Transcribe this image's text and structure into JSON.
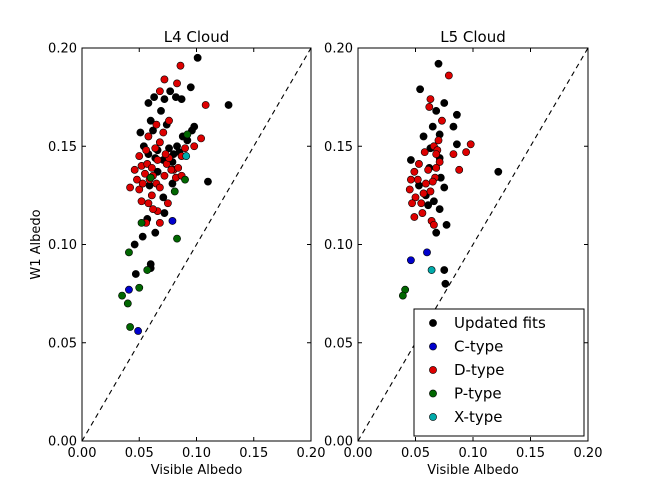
{
  "chart_data": [
    {
      "type": "scatter",
      "title": "L4 Cloud",
      "xlabel": "Visible Albedo",
      "ylabel": "W1 Albedo",
      "xlim": [
        0,
        0.2
      ],
      "ylim": [
        0,
        0.2
      ],
      "xticks": [
        "0.00",
        "0.05",
        "0.10",
        "0.15",
        "0.20"
      ],
      "yticks": [
        "0.00",
        "0.05",
        "0.10",
        "0.15",
        "0.20"
      ],
      "reference_line": "y = x (dashed)",
      "series": [
        {
          "name": "Updated fits",
          "color": "#000000",
          "points": [
            [
              0.058,
              0.172
            ],
            [
              0.063,
              0.175
            ],
            [
              0.072,
              0.174
            ],
            [
              0.069,
              0.168
            ],
            [
              0.077,
              0.178
            ],
            [
              0.074,
              0.161
            ],
            [
              0.06,
              0.163
            ],
            [
              0.062,
              0.158
            ],
            [
              0.051,
              0.157
            ],
            [
              0.054,
              0.15
            ],
            [
              0.058,
              0.146
            ],
            [
              0.064,
              0.144
            ],
            [
              0.066,
              0.137
            ],
            [
              0.071,
              0.143
            ],
            [
              0.059,
              0.13
            ],
            [
              0.071,
              0.124
            ],
            [
              0.072,
              0.116
            ],
            [
              0.057,
              0.113
            ],
            [
              0.064,
              0.106
            ],
            [
              0.053,
              0.104
            ],
            [
              0.046,
              0.1
            ],
            [
              0.06,
              0.09
            ],
            [
              0.06,
              0.088
            ],
            [
              0.047,
              0.085
            ],
            [
              0.088,
              0.155
            ],
            [
              0.096,
              0.158
            ],
            [
              0.098,
              0.16
            ],
            [
              0.087,
              0.174
            ],
            [
              0.101,
              0.195
            ],
            [
              0.095,
              0.18
            ],
            [
              0.092,
              0.153
            ],
            [
              0.085,
              0.147
            ],
            [
              0.11,
              0.132
            ],
            [
              0.128,
              0.171
            ],
            [
              0.08,
              0.146
            ],
            [
              0.076,
              0.149
            ],
            [
              0.079,
              0.142
            ],
            [
              0.083,
              0.15
            ],
            [
              0.082,
              0.175
            ],
            [
              0.066,
              0.148
            ],
            [
              0.079,
              0.131
            ]
          ]
        },
        {
          "name": "C-type",
          "color": "#0000cc",
          "points": [
            [
              0.041,
              0.077
            ],
            [
              0.049,
              0.056
            ],
            [
              0.079,
              0.112
            ]
          ]
        },
        {
          "name": "D-type",
          "color": "#dd0000",
          "points": [
            [
              0.072,
              0.184
            ],
            [
              0.086,
              0.191
            ],
            [
              0.083,
              0.182
            ],
            [
              0.076,
              0.163
            ],
            [
              0.068,
              0.178
            ],
            [
              0.065,
              0.161
            ],
            [
              0.058,
              0.155
            ],
            [
              0.056,
              0.148
            ],
            [
              0.05,
              0.145
            ],
            [
              0.052,
              0.14
            ],
            [
              0.046,
              0.138
            ],
            [
              0.048,
              0.133
            ],
            [
              0.042,
              0.129
            ],
            [
              0.05,
              0.128
            ],
            [
              0.053,
              0.131
            ],
            [
              0.055,
              0.136
            ],
            [
              0.057,
              0.141
            ],
            [
              0.061,
              0.139
            ],
            [
              0.062,
              0.135
            ],
            [
              0.065,
              0.131
            ],
            [
              0.068,
              0.129
            ],
            [
              0.072,
              0.135
            ],
            [
              0.074,
              0.141
            ],
            [
              0.076,
              0.144
            ],
            [
              0.073,
              0.146
            ],
            [
              0.068,
              0.152
            ],
            [
              0.064,
              0.149
            ],
            [
              0.071,
              0.157
            ],
            [
              0.061,
              0.125
            ],
            [
              0.058,
              0.121
            ],
            [
              0.052,
              0.122
            ],
            [
              0.066,
              0.117
            ],
            [
              0.068,
              0.111
            ],
            [
              0.056,
              0.111
            ],
            [
              0.062,
              0.118
            ],
            [
              0.075,
              0.121
            ],
            [
              0.08,
              0.138
            ],
            [
              0.082,
              0.134
            ],
            [
              0.087,
              0.135
            ],
            [
              0.087,
              0.145
            ],
            [
              0.084,
              0.139
            ],
            [
              0.09,
              0.149
            ],
            [
              0.098,
              0.15
            ],
            [
              0.104,
              0.154
            ],
            [
              0.108,
              0.171
            ],
            [
              0.078,
              0.138
            ],
            [
              0.066,
              0.143
            ],
            [
              0.059,
              0.133
            ]
          ]
        },
        {
          "name": "P-type",
          "color": "#006600",
          "points": [
            [
              0.035,
              0.074
            ],
            [
              0.041,
              0.096
            ],
            [
              0.04,
              0.07
            ],
            [
              0.042,
              0.058
            ],
            [
              0.05,
              0.078
            ],
            [
              0.057,
              0.087
            ],
            [
              0.083,
              0.103
            ],
            [
              0.09,
              0.133
            ],
            [
              0.092,
              0.156
            ],
            [
              0.081,
              0.127
            ],
            [
              0.06,
              0.134
            ],
            [
              0.052,
              0.111
            ]
          ]
        },
        {
          "name": "X-type",
          "color": "#00aaaa",
          "points": [
            [
              0.091,
              0.145
            ]
          ]
        }
      ]
    },
    {
      "type": "scatter",
      "title": "L5 Cloud",
      "xlabel": "Visible Albedo",
      "ylabel": "",
      "xlim": [
        0,
        0.2
      ],
      "ylim": [
        0,
        0.2
      ],
      "xticks": [
        "0.00",
        "0.05",
        "0.10",
        "0.15",
        "0.20"
      ],
      "yticks": [
        "0.00",
        "0.05",
        "0.10",
        "0.15",
        "0.20"
      ],
      "reference_line": "y = x (dashed)",
      "series": [
        {
          "name": "Updated fits",
          "color": "#000000",
          "points": [
            [
              0.07,
              0.192
            ],
            [
              0.054,
              0.179
            ],
            [
              0.068,
              0.168
            ],
            [
              0.075,
              0.172
            ],
            [
              0.065,
              0.16
            ],
            [
              0.071,
              0.156
            ],
            [
              0.083,
              0.16
            ],
            [
              0.086,
              0.166
            ],
            [
              0.057,
              0.155
            ],
            [
              0.063,
              0.149
            ],
            [
              0.071,
              0.144
            ],
            [
              0.046,
              0.143
            ],
            [
              0.062,
              0.139
            ],
            [
              0.072,
              0.134
            ],
            [
              0.075,
              0.129
            ],
            [
              0.053,
              0.13
            ],
            [
              0.059,
              0.125
            ],
            [
              0.066,
              0.122
            ],
            [
              0.061,
              0.12
            ],
            [
              0.071,
              0.118
            ],
            [
              0.077,
              0.11
            ],
            [
              0.068,
              0.106
            ],
            [
              0.075,
              0.087
            ],
            [
              0.076,
              0.08
            ],
            [
              0.122,
              0.137
            ],
            [
              0.086,
              0.151
            ]
          ]
        },
        {
          "name": "C-type",
          "color": "#0000cc",
          "points": [
            [
              0.046,
              0.092
            ],
            [
              0.06,
              0.096
            ]
          ]
        },
        {
          "name": "D-type",
          "color": "#dd0000",
          "points": [
            [
              0.079,
              0.186
            ],
            [
              0.063,
              0.174
            ],
            [
              0.062,
              0.17
            ],
            [
              0.073,
              0.163
            ],
            [
              0.066,
              0.15
            ],
            [
              0.069,
              0.148
            ],
            [
              0.071,
              0.142
            ],
            [
              0.068,
              0.146
            ],
            [
              0.058,
              0.147
            ],
            [
              0.053,
              0.141
            ],
            [
              0.049,
              0.137
            ],
            [
              0.046,
              0.133
            ],
            [
              0.045,
              0.128
            ],
            [
              0.05,
              0.124
            ],
            [
              0.055,
              0.121
            ],
            [
              0.059,
              0.131
            ],
            [
              0.063,
              0.127
            ],
            [
              0.067,
              0.134
            ],
            [
              0.064,
              0.112
            ],
            [
              0.047,
              0.121
            ],
            [
              0.049,
              0.114
            ],
            [
              0.056,
              0.116
            ],
            [
              0.061,
              0.138
            ],
            [
              0.065,
              0.132
            ],
            [
              0.068,
              0.139
            ],
            [
              0.083,
              0.146
            ],
            [
              0.088,
              0.138
            ],
            [
              0.098,
              0.151
            ],
            [
              0.094,
              0.147
            ],
            [
              0.066,
              0.11
            ],
            [
              0.07,
              0.153
            ],
            [
              0.057,
              0.126
            ],
            [
              0.052,
              0.133
            ]
          ]
        },
        {
          "name": "P-type",
          "color": "#006600",
          "points": [
            [
              0.041,
              0.077
            ],
            [
              0.039,
              0.074
            ]
          ]
        },
        {
          "name": "X-type",
          "color": "#00aaaa",
          "points": [
            [
              0.064,
              0.087
            ]
          ]
        }
      ]
    }
  ],
  "legend": {
    "location": "lower right of L5 panel",
    "entries": [
      {
        "label": "Updated fits",
        "color": "#000000"
      },
      {
        "label": "C-type",
        "color": "#0000cc"
      },
      {
        "label": "D-type",
        "color": "#dd0000"
      },
      {
        "label": "P-type",
        "color": "#006600"
      },
      {
        "label": "X-type",
        "color": "#00aaaa"
      }
    ]
  }
}
